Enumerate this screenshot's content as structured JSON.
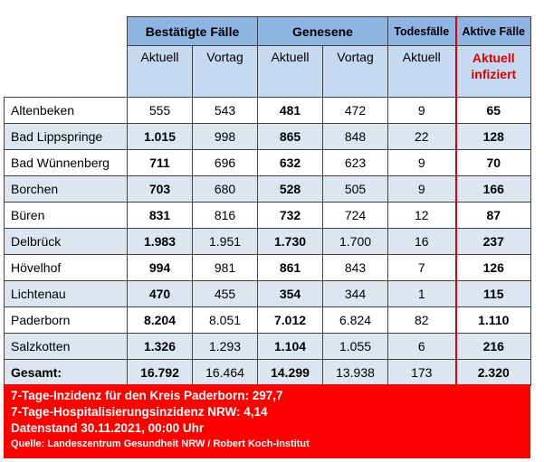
{
  "table": {
    "group_headers": [
      "Bestätigte Fälle",
      "Genesene",
      "Todesfälle",
      "Aktive Fälle"
    ],
    "sub_headers": [
      "Aktuell",
      "Vortag",
      "Aktuell",
      "Vortag",
      "Aktuell",
      "Aktuell infiziert"
    ],
    "rows": [
      [
        "Altenbeken",
        "555",
        "543",
        "481",
        "472",
        "9",
        "65"
      ],
      [
        "Bad Lippspringe",
        "1.015",
        "998",
        "865",
        "848",
        "22",
        "128"
      ],
      [
        "Bad Wünnenberg",
        "711",
        "696",
        "632",
        "623",
        "9",
        "70"
      ],
      [
        "Borchen",
        "703",
        "680",
        "528",
        "505",
        "9",
        "166"
      ],
      [
        "Büren",
        "831",
        "816",
        "732",
        "724",
        "12",
        "87"
      ],
      [
        "Delbrück",
        "1.983",
        "1.951",
        "1.730",
        "1.700",
        "16",
        "237"
      ],
      [
        "Hövelhof",
        "994",
        "981",
        "861",
        "843",
        "7",
        "126"
      ],
      [
        "Lichtenau",
        "470",
        "455",
        "354",
        "344",
        "1",
        "115"
      ],
      [
        "Paderborn",
        "8.204",
        "8.051",
        "7.012",
        "6.824",
        "82",
        "1.110"
      ],
      [
        "Salzkotten",
        "1.326",
        "1.293",
        "1.104",
        "1.055",
        "6",
        "216"
      ]
    ],
    "total": [
      "Gesamt:",
      "16.792",
      "16.464",
      "14.299",
      "13.938",
      "173",
      "2.320"
    ]
  },
  "footer": [
    "7-Tage-Inzidenz für den Kreis Paderborn: 297,7",
    "7-Tage-Hospitalisierungsinzidenz NRW: 4,14",
    "Datenstand 30.11.2021, 00:00 Uhr",
    "Quelle: Landeszentrum Gesundheit NRW / Robert Koch-Institut"
  ]
}
